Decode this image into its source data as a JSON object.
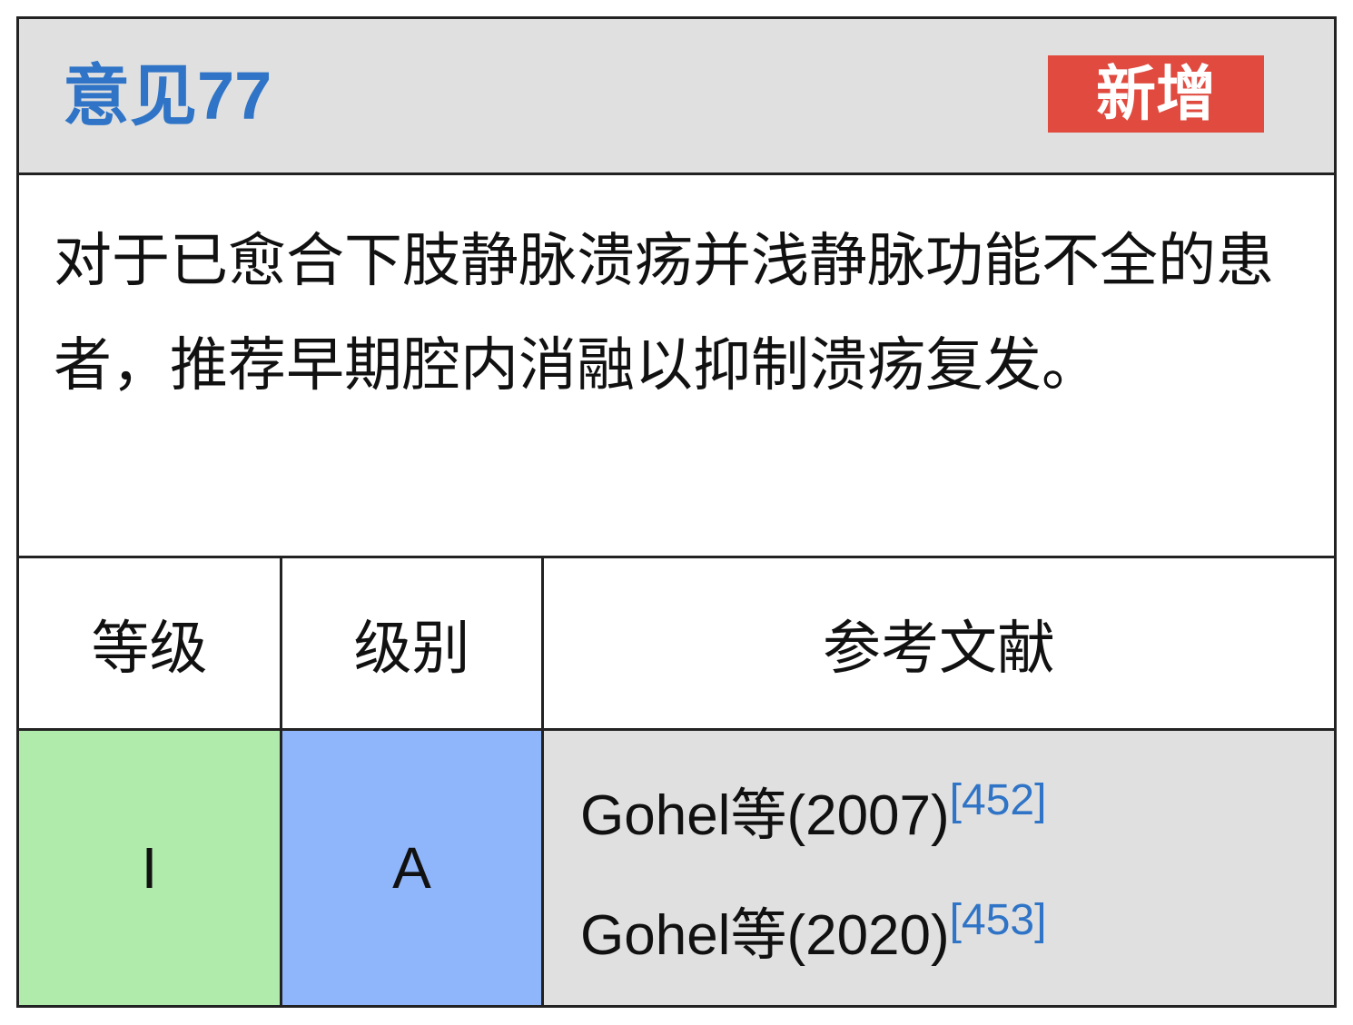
{
  "header": {
    "title": "意见77",
    "badge": "新增",
    "colors": {
      "title": "#2f74c6",
      "badge": "#e04a3f"
    }
  },
  "recommendation": "对于已愈合下肢静脉溃疡并浅静脉功能不全的患者，推荐早期腔内消融以抑制溃疡复发。",
  "table": {
    "headers": [
      "等级",
      "级别",
      "参考文献"
    ],
    "row": {
      "grade": "I",
      "level": "A",
      "references": [
        {
          "text": "Gohel等(2007)",
          "cite": "[452]"
        },
        {
          "text": "Gohel等(2020)",
          "cite": "[453]"
        }
      ]
    },
    "colors": {
      "grade": "#b0ebab",
      "level": "#8fb6fa",
      "references": "#e0e0e0"
    }
  }
}
